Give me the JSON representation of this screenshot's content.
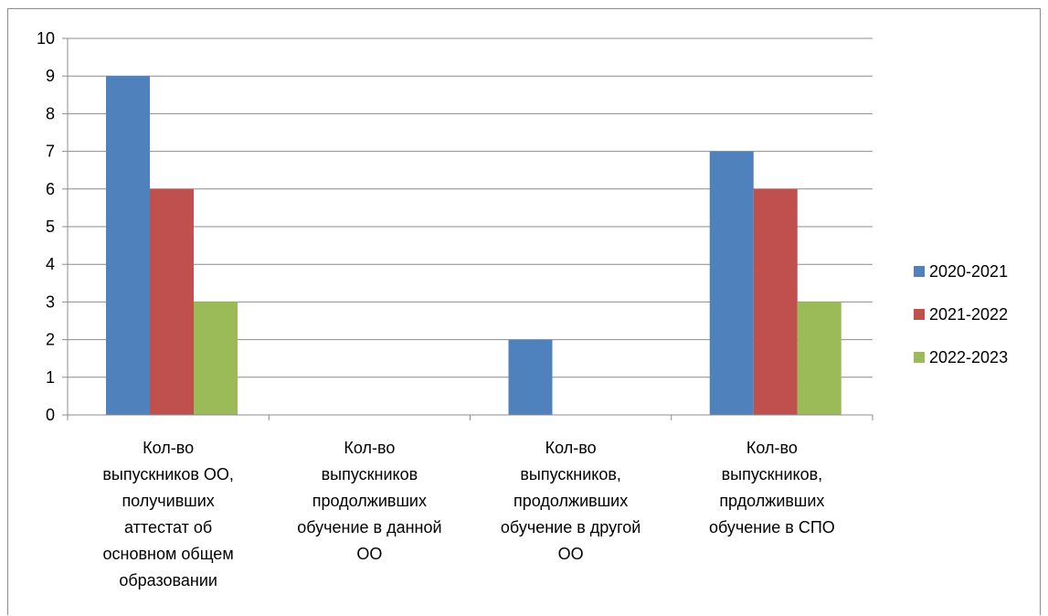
{
  "chart_data": {
    "type": "bar",
    "categories": [
      [
        "Кол-во",
        "выпускников ОО,",
        "получивших",
        "аттестат об",
        "основном общем",
        "образовании"
      ],
      [
        "Кол-во",
        "выпускников",
        "продолживших",
        "обучение в данной",
        "ОО"
      ],
      [
        "Кол-во",
        "выпускников,",
        "продолживших",
        "обучение в другой",
        "ОО"
      ],
      [
        "Кол-во",
        "выпускников,",
        "прдолживших",
        "обучение в СПО"
      ]
    ],
    "series": [
      {
        "name": "2020-2021",
        "color": "#4f81bd",
        "values": [
          9,
          0,
          2,
          7
        ]
      },
      {
        "name": "2021-2022",
        "color": "#c0504d",
        "values": [
          6,
          0,
          0,
          6
        ]
      },
      {
        "name": "2022-2023",
        "color": "#9bbb59",
        "values": [
          3,
          0,
          0,
          3
        ]
      }
    ],
    "ylim": [
      0,
      10
    ],
    "yticks": [
      "0",
      "1",
      "2",
      "3",
      "4",
      "5",
      "6",
      "7",
      "8",
      "9",
      "10"
    ],
    "grid": true,
    "legend_position": "right"
  }
}
